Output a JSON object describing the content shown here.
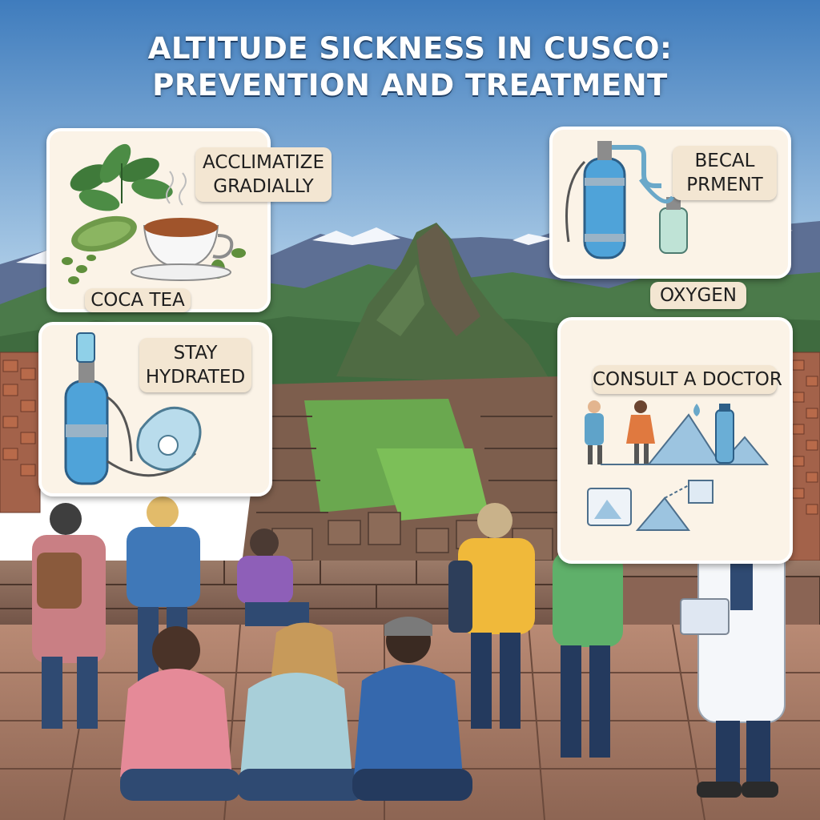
{
  "title": {
    "line1": "ALTITUDE SICKNESS IN CUSCO:",
    "line2": "PREVENTION AND TREATMENT"
  },
  "panels": {
    "coca": {
      "heading_line1": "ACCLIMATIZE",
      "heading_line2": "GRADIALLY",
      "caption": "COCA TEA"
    },
    "oxygen_top": {
      "heading_line1": "BECAL",
      "heading_line2": "PRMENT",
      "caption": "OXYGEN"
    },
    "hydrate": {
      "heading_line1": "STAY",
      "heading_line2": "HYDRATED"
    },
    "doctor": {
      "heading": "CONSULT A DOCTOR"
    }
  },
  "colors": {
    "sky_top": "#3f7fbf",
    "sky_bottom": "#bcd9ef",
    "panel_bg": "#fbf3e7",
    "label_bg": "#f3e6d2",
    "stone": "#8a6a5a",
    "grass": "#6aa84f"
  }
}
